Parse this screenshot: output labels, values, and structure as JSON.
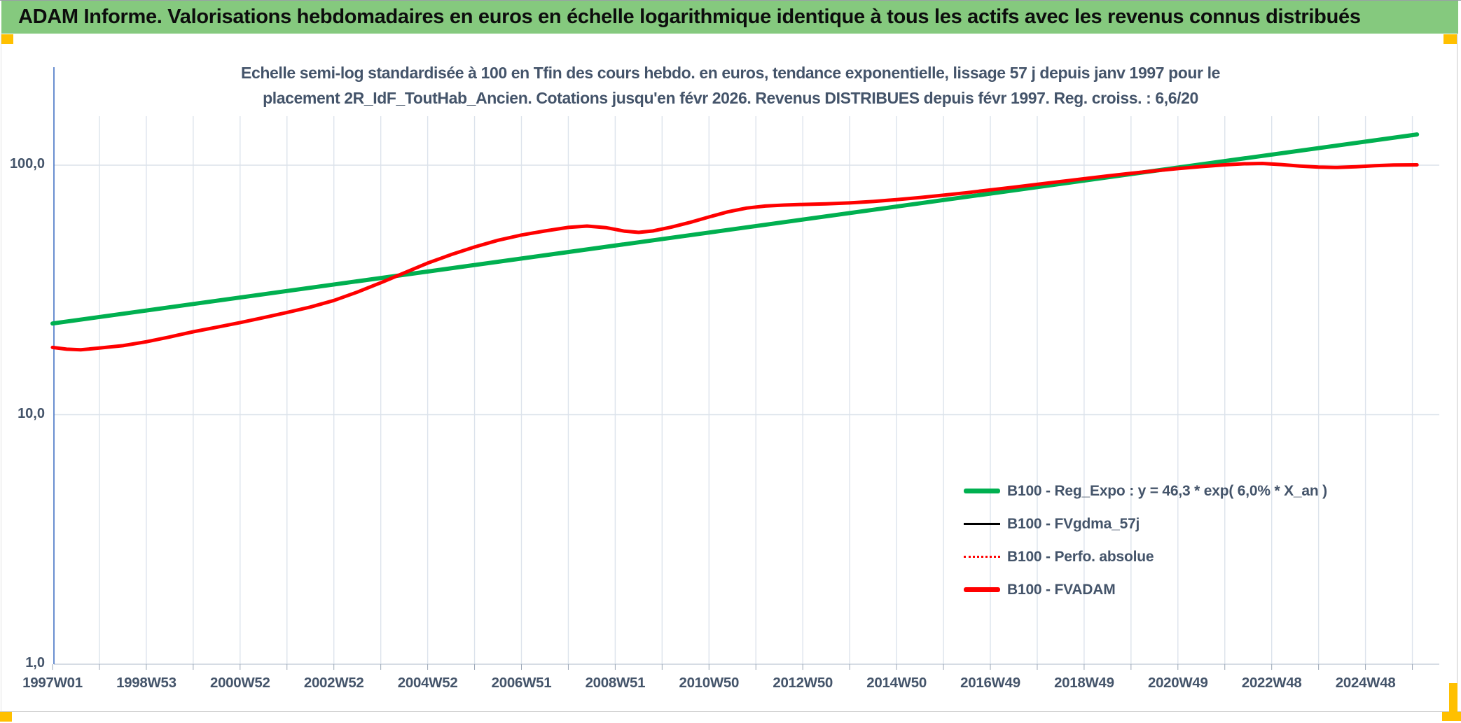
{
  "banner": {
    "title": "ADAM Informe. Valorisations hebdomadaires en euros en échelle logarithmique identique à tous les actifs avec les revenus connus distribués"
  },
  "chart": {
    "title_line1": "Echelle semi-log standardisée à 100 en Tfin des cours hebdo. en euros, tendance exponentielle, lissage 57 j depuis janv 1997 pour le",
    "title_line2": "placement 2R_IdF_ToutHab_Ancien. Cotations jusqu'en févr 2026. Revenus DISTRIBUES depuis févr 1997. Reg. croiss. : 6,6/20",
    "legend": [
      {
        "label": "B100 - Reg_Expo : y = 46,3 * exp( 6,0% *  X_an )",
        "swatch": "green-thick"
      },
      {
        "label": "B100 - FVgdma_57j",
        "swatch": "black-thin"
      },
      {
        "label": "B100 - Perfo. absolue",
        "swatch": "red-dotted"
      },
      {
        "label": "B100 - FVADAM",
        "swatch": "red-thick"
      }
    ]
  },
  "colors": {
    "banner_green": "#85C97E",
    "accent_yellow": "#FFC000",
    "title_text": "#44546A",
    "axis_text": "#44546A",
    "y_axis_line": "#4472C4",
    "gridline": "#dce3ec",
    "reg_expo": "#00B050",
    "fvadam": "#FF0000",
    "fvgdma": "#000000"
  },
  "chart_data": {
    "type": "line",
    "title": "Echelle semi-log standardisée à 100 en Tfin des cours hebdo. en euros, tendance exponentielle, lissage 57 j depuis janv 1997 pour le placement 2R_IdF_ToutHab_Ancien. Cotations jusqu'en févr 2026. Revenus DISTRIBUES depuis févr 1997. Reg. croiss. : 6,6/20",
    "y_axis": {
      "scale": "log10",
      "tick_labels": [
        "100,0",
        "10,0",
        "1,0"
      ],
      "tick_values": [
        100,
        10,
        1
      ],
      "min": 1,
      "max": 158,
      "gridlines": true
    },
    "x_axis": {
      "tick_labels": [
        "1997W01",
        "1998W53",
        "2000W52",
        "2002W52",
        "2004W52",
        "2006W51",
        "2008W51",
        "2010W50",
        "2012W50",
        "2014W50",
        "2016W49",
        "2018W49",
        "2020W49",
        "2022W48",
        "2024W48"
      ],
      "start_year": 1997.0,
      "end_year": 2026.1,
      "years_per_label": 2,
      "gridlines_every_year": true
    },
    "legend_position": "inside-right-lower",
    "series": [
      {
        "name": "B100 - Reg_Expo : y = 46,3 * exp( 6,0% *  X_an )",
        "formula": "y = 46,3 * exp( 6,0% * X_an )",
        "color": "#00B050",
        "width": 6,
        "dash": "solid",
        "x": [
          1997.0,
          2026.1
        ],
        "y": [
          23.2,
          132.8
        ]
      },
      {
        "name": "B100 - FVgdma_57j",
        "color": "#000000",
        "width": 2.5,
        "dash": "solid",
        "coincides_with_series": 3
      },
      {
        "name": "B100 - Perfo. absolue",
        "color": "#FF0000",
        "width": 2,
        "dash": "dotted",
        "coincides_with_series": 3
      },
      {
        "name": "B100 - FVADAM",
        "color": "#FF0000",
        "width": 5,
        "dash": "solid",
        "x": [
          1997.0,
          1997.3,
          1997.6,
          1998.0,
          1998.5,
          1999.0,
          1999.5,
          2000.0,
          2000.5,
          2001.0,
          2001.5,
          2002.0,
          2002.5,
          2003.0,
          2003.5,
          2004.0,
          2004.5,
          2005.0,
          2005.5,
          2006.0,
          2006.5,
          2007.0,
          2007.5,
          2008.0,
          2008.4,
          2008.8,
          2009.2,
          2009.5,
          2009.8,
          2010.2,
          2010.6,
          2011.0,
          2011.4,
          2011.8,
          2012.2,
          2012.6,
          2013.0,
          2013.5,
          2014.0,
          2014.5,
          2015.0,
          2015.5,
          2016.0,
          2016.5,
          2017.0,
          2017.5,
          2018.0,
          2018.5,
          2019.0,
          2019.5,
          2020.0,
          2020.5,
          2021.0,
          2021.5,
          2022.0,
          2022.4,
          2022.8,
          2023.2,
          2023.6,
          2024.0,
          2024.4,
          2024.8,
          2025.2,
          2025.6,
          2026.1
        ],
        "y": [
          18.6,
          18.3,
          18.2,
          18.5,
          18.9,
          19.6,
          20.5,
          21.5,
          22.4,
          23.4,
          24.5,
          25.7,
          27.0,
          28.7,
          31.0,
          33.8,
          37.0,
          40.5,
          43.8,
          47.0,
          50.0,
          52.5,
          54.5,
          56.3,
          57.0,
          56.2,
          54.4,
          53.8,
          54.5,
          56.5,
          59.0,
          62.0,
          65.0,
          67.3,
          68.6,
          69.2,
          69.6,
          70.0,
          70.6,
          71.5,
          72.8,
          74.2,
          75.8,
          77.6,
          79.6,
          81.6,
          83.8,
          86.0,
          88.3,
          90.6,
          92.8,
          94.9,
          96.9,
          98.7,
          100.3,
          101.3,
          101.6,
          100.6,
          99.2,
          98.2,
          97.9,
          98.6,
          99.5,
          100.1,
          100.3
        ]
      }
    ]
  }
}
